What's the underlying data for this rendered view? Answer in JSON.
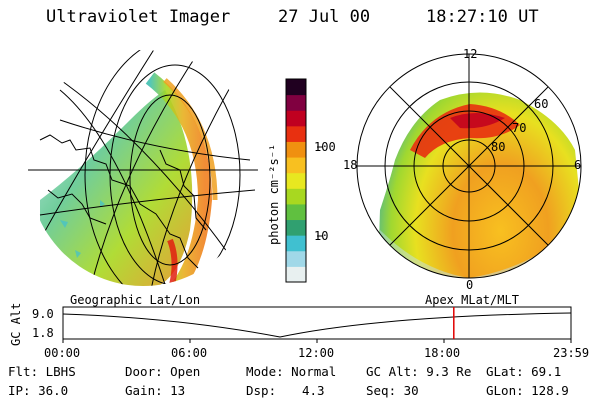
{
  "header": {
    "title": "Ultraviolet Imager",
    "date": "27 Jul 00",
    "time": "18:27:10 UT"
  },
  "left_panel": {
    "caption": "Geographic Lat/Lon"
  },
  "right_panel": {
    "caption": "Apex MLat/MLT",
    "mlt_labels": [
      "12",
      "18",
      "6",
      "0"
    ],
    "lat_labels": [
      "60",
      "70",
      "80"
    ]
  },
  "colorbar": {
    "unit_label": "photon cm⁻²s⁻¹",
    "tick_labels": [
      "100",
      "10"
    ],
    "colors": [
      "#e8f0f0",
      "#a0d8e8",
      "#40c0d0",
      "#30a070",
      "#60c040",
      "#a8d820",
      "#e8e820",
      "#f8c020",
      "#f09010",
      "#e83010",
      "#c00020",
      "#800040",
      "#200020"
    ]
  },
  "altitude_plot": {
    "y_axis_label": "GC Alt",
    "y_ticks": [
      "9.0",
      "1.8"
    ],
    "x_ticks": [
      "00:00",
      "06:00",
      "12:00",
      "18:00",
      "23:59"
    ],
    "marker_time": "18:27",
    "marker_color": "#e00000"
  },
  "footer": {
    "flt": "Flt: LBHS",
    "door": "Door: Open",
    "mode": "Mode: Normal",
    "gc_alt": "GC Alt: 9.3 Re",
    "glat": "GLat:  69.1",
    "ip": "IP: 36.0",
    "gain": "Gain: 13",
    "dsp_label": "Dsp:",
    "dsp_value": "4.3",
    "seq": "Seq: 30",
    "glon": "GLon: 128.9"
  }
}
